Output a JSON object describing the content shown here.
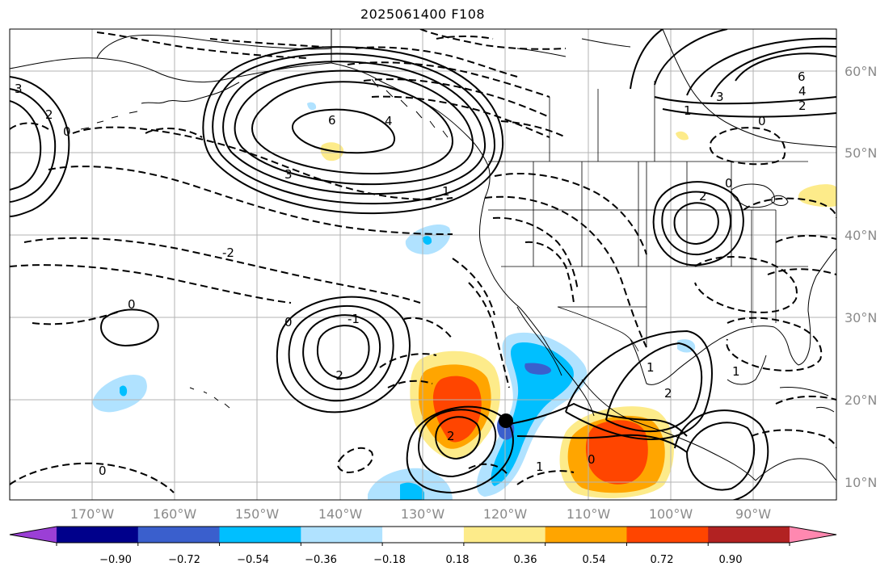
{
  "title": "2025061400 F108",
  "lat_labels": [
    "60°N",
    "50°N",
    "40°N",
    "30°N",
    "20°N",
    "10°N"
  ],
  "lon_labels": [
    "170°W",
    "160°W",
    "150°W",
    "140°W",
    "130°W",
    "120°W",
    "110°W",
    "100°W",
    "90°W"
  ],
  "colorbar": {
    "tick_labels": [
      "−0.90",
      "−0.72",
      "−0.54",
      "−0.36",
      "−0.18",
      "0.18",
      "0.36",
      "0.54",
      "0.72",
      "0.90"
    ],
    "colors": [
      "#9b3fd6",
      "#00008b",
      "#3a5fcd",
      "#00bfff",
      "#b0e2ff",
      "#ffffff",
      "#fdeb8a",
      "#ffa500",
      "#ff4500",
      "#b22222",
      "#ff88b0"
    ]
  },
  "contour_labels": {
    "alaska_high_6": "6",
    "alaska_high_4": "4",
    "alaska_high_3": "3",
    "alaska_high_1": "1",
    "pacific_neg_2": "-2",
    "pacific_0": "0",
    "mid_low_1": "-1",
    "mid_low_2": "-2",
    "mid_zero": "0",
    "east_high_2": "2",
    "east_zero": "0",
    "ne_6": "6",
    "ne_4": "4",
    "ne_3": "3",
    "ne_2": "2",
    "ne_1": "1",
    "ne_0": "0",
    "west_3": "3",
    "west_2": "2",
    "west_0": "0",
    "trop_2": "2",
    "trop_0": "0",
    "trop_1": "1",
    "mex_1": "1",
    "mex_2": "2",
    "se_1": "1",
    "far_w_0": "0"
  }
}
